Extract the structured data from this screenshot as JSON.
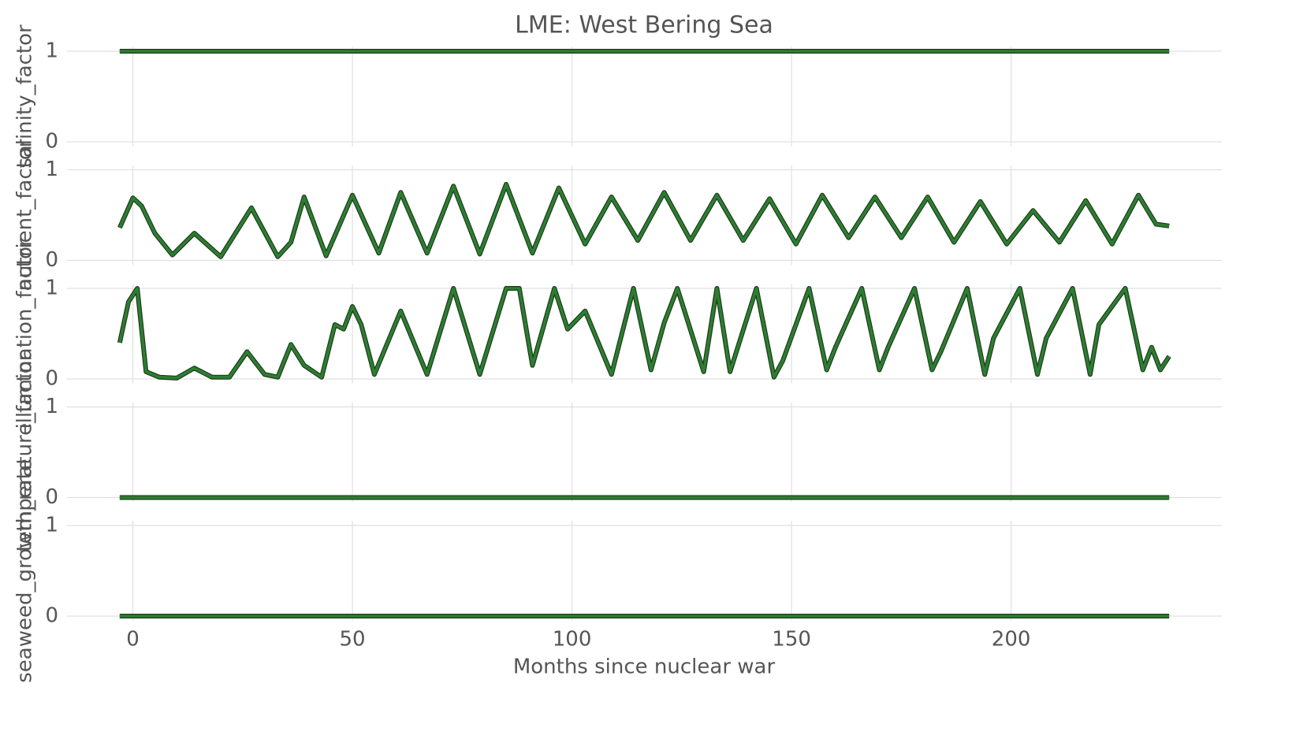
{
  "chart_data": [
    {
      "type": "line",
      "title": "LME: West Bering Sea",
      "ylabel": "salinity_factor",
      "xlim": [
        -15,
        248
      ],
      "xticks": [
        0,
        50,
        100,
        150,
        200
      ],
      "ylim": [
        -0.05,
        1.05
      ],
      "yticks": [
        0,
        1
      ],
      "grid": true,
      "series": [
        {
          "name": "salinity_factor",
          "color": "#2e7d32",
          "x": [
            -3,
            236
          ],
          "values": [
            1,
            1
          ]
        }
      ]
    },
    {
      "type": "line",
      "ylabel": "nutrient_factor",
      "xlim": [
        -15,
        248
      ],
      "xticks": [
        0,
        50,
        100,
        150,
        200
      ],
      "ylim": [
        -0.05,
        1.05
      ],
      "yticks": [
        0,
        1
      ],
      "grid": true,
      "series": [
        {
          "name": "nutrient_factor",
          "color": "#2e7d32",
          "x": [
            -3,
            0,
            2,
            5,
            9,
            14,
            20,
            27,
            33,
            36,
            39,
            44,
            50,
            56,
            61,
            67,
            73,
            79,
            85,
            91,
            97,
            103,
            109,
            115,
            121,
            127,
            133,
            139,
            145,
            151,
            157,
            163,
            169,
            175,
            181,
            187,
            193,
            199,
            205,
            211,
            217,
            223,
            229,
            233,
            236
          ],
          "values": [
            0.36,
            0.69,
            0.6,
            0.3,
            0.06,
            0.3,
            0.04,
            0.58,
            0.04,
            0.2,
            0.7,
            0.05,
            0.72,
            0.08,
            0.75,
            0.08,
            0.82,
            0.07,
            0.84,
            0.08,
            0.8,
            0.18,
            0.7,
            0.22,
            0.75,
            0.22,
            0.72,
            0.22,
            0.68,
            0.18,
            0.72,
            0.25,
            0.7,
            0.25,
            0.7,
            0.2,
            0.65,
            0.18,
            0.55,
            0.2,
            0.66,
            0.18,
            0.72,
            0.4,
            0.38
          ]
        }
      ]
    },
    {
      "type": "line",
      "ylabel": "illumination_factor",
      "xlim": [
        -15,
        248
      ],
      "xticks": [
        0,
        50,
        100,
        150,
        200
      ],
      "ylim": [
        -0.05,
        1.05
      ],
      "yticks": [
        0,
        1
      ],
      "grid": true,
      "series": [
        {
          "name": "illumination_factor",
          "color": "#2e7d32",
          "x": [
            -3,
            -1,
            1,
            3,
            6,
            10,
            14,
            18,
            22,
            26,
            30,
            33,
            36,
            39,
            43,
            46,
            48,
            50,
            52,
            55,
            61,
            67,
            73,
            79,
            85,
            88,
            91,
            96,
            99,
            103,
            109,
            114,
            118,
            121,
            124,
            130,
            133,
            136,
            142,
            146,
            148,
            154,
            158,
            160,
            166,
            170,
            172,
            178,
            182,
            184,
            190,
            194,
            196,
            202,
            206,
            208,
            214,
            218,
            220,
            226,
            230,
            232,
            234,
            236
          ],
          "values": [
            0.4,
            0.85,
            1,
            0.08,
            0.02,
            0.01,
            0.12,
            0.02,
            0.02,
            0.3,
            0.05,
            0.02,
            0.38,
            0.15,
            0.02,
            0.6,
            0.55,
            0.8,
            0.6,
            0.05,
            0.75,
            0.05,
            1,
            0.05,
            1,
            1,
            0.15,
            1,
            0.55,
            0.75,
            0.05,
            1,
            0.1,
            0.62,
            1,
            0.08,
            1,
            0.08,
            1,
            0.02,
            0.2,
            1,
            0.1,
            0.35,
            1,
            0.1,
            0.35,
            1,
            0.1,
            0.3,
            1,
            0.05,
            0.45,
            1,
            0.05,
            0.45,
            1,
            0.05,
            0.6,
            1,
            0.1,
            0.35,
            0.1,
            0.25
          ]
        }
      ]
    },
    {
      "type": "line",
      "ylabel": "temperature_factor",
      "xlim": [
        -15,
        248
      ],
      "xticks": [
        0,
        50,
        100,
        150,
        200
      ],
      "ylim": [
        -0.05,
        1.05
      ],
      "yticks": [
        0,
        1
      ],
      "grid": true,
      "series": [
        {
          "name": "temperature_factor",
          "color": "#2e7d32",
          "x": [
            -3,
            236
          ],
          "values": [
            0,
            0
          ]
        }
      ]
    },
    {
      "type": "line",
      "ylabel": "seaweed_growth_rate",
      "xlabel": "Months since nuclear war",
      "xlim": [
        -15,
        248
      ],
      "xticks": [
        0,
        50,
        100,
        150,
        200
      ],
      "ylim": [
        -0.05,
        1.05
      ],
      "yticks": [
        0,
        1
      ],
      "grid": true,
      "series": [
        {
          "name": "seaweed_growth_rate",
          "color": "#2e7d32",
          "x": [
            -3,
            236
          ],
          "values": [
            0,
            0
          ]
        }
      ]
    }
  ]
}
